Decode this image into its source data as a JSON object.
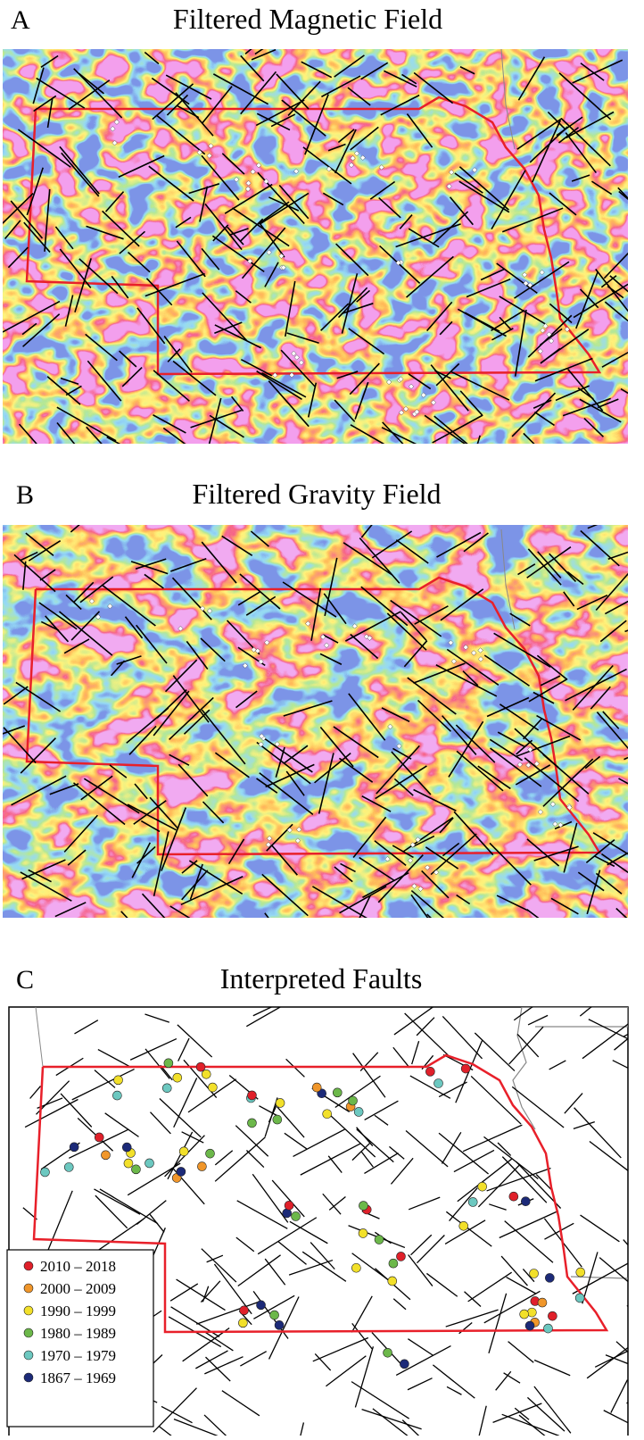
{
  "panels": [
    {
      "letter": "A",
      "title": "Filtered Magnetic Field"
    },
    {
      "letter": "B",
      "title": "Filtered Gravity Field"
    },
    {
      "letter": "C",
      "title": "Interpreted Faults",
      "legend": [
        {
          "label": "2010 – 2018",
          "color": "#e0202a"
        },
        {
          "label": "2000 – 2009",
          "color": "#f0962a"
        },
        {
          "label": "1990 – 1999",
          "color": "#f2e02a"
        },
        {
          "label": "1980 – 1989",
          "color": "#6cb84a"
        },
        {
          "label": "1970 – 1979",
          "color": "#6cc8c0"
        },
        {
          "label": "1867 – 1969",
          "color": "#1c2a78"
        }
      ]
    }
  ]
}
